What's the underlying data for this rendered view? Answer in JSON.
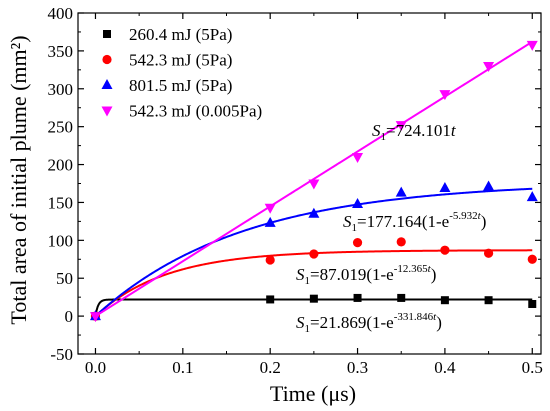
{
  "chart_data": {
    "type": "scatter",
    "xlabel": "Time (μs)",
    "ylabel": "Total area of initial plume (mm²)",
    "xlim": [
      -0.02,
      0.51
    ],
    "ylim": [
      -50,
      400
    ],
    "xticks": [
      "0.0",
      "0.1",
      "0.2",
      "0.3",
      "0.4",
      "0.5"
    ],
    "yticks": [
      "-50",
      "0",
      "50",
      "100",
      "150",
      "200",
      "250",
      "300",
      "350",
      "400"
    ],
    "legend_position": "top-left",
    "grid": false,
    "series": [
      {
        "name": "260.4 mJ (5Pa)",
        "marker": "square",
        "color": "#000000",
        "x": [
          0,
          0.2,
          0.25,
          0.3,
          0.35,
          0.4,
          0.45,
          0.5
        ],
        "y": [
          0,
          22,
          23,
          24,
          24,
          21,
          21,
          16
        ],
        "fit": {
          "A": 21.869,
          "k": 331.846
        },
        "equation": {
          "s": "S",
          "sub": "1",
          "body": "=21.869(1-e",
          "sup": "-331.846t",
          "close": ")"
        }
      },
      {
        "name": "542.3 mJ (5Pa)",
        "marker": "circle",
        "color": "#ff0000",
        "x": [
          0,
          0.2,
          0.25,
          0.3,
          0.35,
          0.4,
          0.45,
          0.5
        ],
        "y": [
          0,
          74,
          82,
          97,
          98,
          87,
          83,
          75
        ],
        "fit": {
          "A": 87.019,
          "k": 12.365
        },
        "equation": {
          "s": "S",
          "sub": "1",
          "body": "=87.019(1-e",
          "sup": "-12.365t",
          "close": ")"
        }
      },
      {
        "name": "801.5 mJ (5Pa)",
        "marker": "triangle-up",
        "color": "#0000ff",
        "x": [
          0,
          0.2,
          0.25,
          0.3,
          0.35,
          0.4,
          0.45,
          0.5
        ],
        "y": [
          0,
          123,
          135,
          148,
          163,
          169,
          171,
          157
        ],
        "fit": {
          "A": 177.164,
          "k": 5.932
        },
        "equation": {
          "s": "S",
          "sub": "1",
          "body": "=177.164(1-e",
          "sup": "-5.932t",
          "close": ")"
        }
      },
      {
        "name": "542.3 mJ (0.005Pa)",
        "marker": "triangle-down",
        "color": "#ff00ff",
        "x": [
          0,
          0.2,
          0.25,
          0.3,
          0.35,
          0.4,
          0.45,
          0.5
        ],
        "y": [
          0,
          143,
          175,
          210,
          252,
          293,
          330,
          358
        ],
        "fit": {
          "slope": 724.101
        },
        "equation": {
          "s": "S",
          "sub": "1",
          "body": "=724.101",
          "sup": "",
          "close": "t"
        }
      }
    ]
  }
}
